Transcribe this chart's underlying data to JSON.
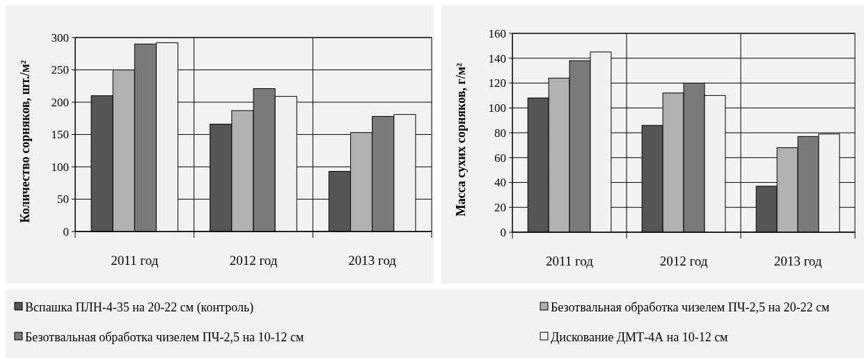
{
  "chart_data": [
    {
      "type": "bar",
      "ylabel": "Количество сорняков, шт./м²",
      "categories": [
        "2011 год",
        "2012 год",
        "2013 год"
      ],
      "ylim": [
        0,
        300
      ],
      "yticks": [
        0,
        50,
        100,
        150,
        200,
        250,
        300
      ],
      "grid": true,
      "legend": "bottom",
      "series": [
        {
          "name": "Вспашка ПЛН-4-35 на 20-22 см (контроль)",
          "color": "#555555",
          "values": [
            210,
            166,
            93
          ]
        },
        {
          "name": "Безотвальная обработка чизелем ПЧ-2,5 на 20-22 см",
          "color": "#b0b0b0",
          "values": [
            250,
            187,
            153
          ]
        },
        {
          "name": "Безотвальная обработка чизелем ПЧ-2,5 на 10-12 см",
          "color": "#7a7a7a",
          "values": [
            290,
            221,
            178
          ]
        },
        {
          "name": "Дискование ДМТ-4А на 10-12 см",
          "color": "#f0f0f0",
          "values": [
            292,
            209,
            181
          ]
        }
      ]
    },
    {
      "type": "bar",
      "ylabel": "Масса сухих сорняков, г/м²",
      "categories": [
        "2011 год",
        "2012 год",
        "2013 год"
      ],
      "ylim": [
        0,
        160
      ],
      "yticks": [
        0,
        20,
        40,
        60,
        80,
        100,
        120,
        140,
        160
      ],
      "grid": true,
      "series": [
        {
          "color": "#555555",
          "values": [
            108,
            86,
            37
          ]
        },
        {
          "color": "#b0b0b0",
          "values": [
            124,
            112,
            68
          ]
        },
        {
          "color": "#7a7a7a",
          "values": [
            138,
            120,
            77
          ]
        },
        {
          "color": "#f0f0f0",
          "values": [
            145,
            110,
            79
          ]
        }
      ]
    }
  ]
}
